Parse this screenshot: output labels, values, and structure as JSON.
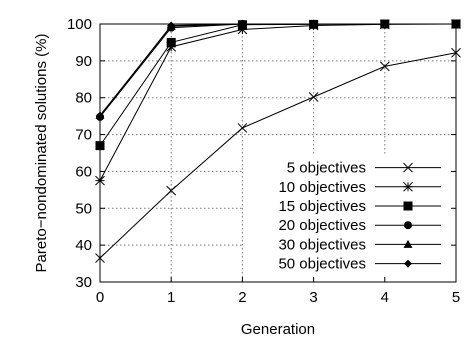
{
  "chart_data": {
    "type": "line",
    "title": "",
    "xlabel": "Generation",
    "ylabel": "Pareto−nondominated solutions (%)",
    "x": [
      0,
      1,
      2,
      3,
      4,
      5
    ],
    "x_ticks": [
      "0",
      "1",
      "2",
      "3",
      "4",
      "5"
    ],
    "y_ticks": [
      "30",
      "40",
      "50",
      "60",
      "70",
      "80",
      "90",
      "100"
    ],
    "xlim": [
      0,
      5
    ],
    "ylim": [
      30,
      100
    ],
    "grid": "dotted",
    "legend_position": "bottom-right",
    "series": [
      {
        "name": "5 objectives",
        "marker": "x",
        "values": [
          36.5,
          54.8,
          71.8,
          80.2,
          88.5,
          92.2
        ]
      },
      {
        "name": "10 objectives",
        "marker": "asterisk",
        "values": [
          57.5,
          93.8,
          98.5,
          99.6,
          99.9,
          100
        ]
      },
      {
        "name": "15 objectives",
        "marker": "filled-square",
        "values": [
          67.0,
          95.0,
          99.8,
          99.9,
          100,
          100
        ]
      },
      {
        "name": "20 objectives",
        "marker": "filled-circle",
        "values": [
          74.8,
          99.0,
          100,
          100,
          100,
          100
        ]
      },
      {
        "name": "30 objectives",
        "marker": "filled-triangle",
        "values": [
          75.2,
          99.4,
          100,
          100,
          100,
          100
        ]
      },
      {
        "name": "50 objectives",
        "marker": "filled-diamond",
        "values": [
          75.0,
          99.6,
          100,
          100,
          100,
          100
        ]
      }
    ]
  }
}
